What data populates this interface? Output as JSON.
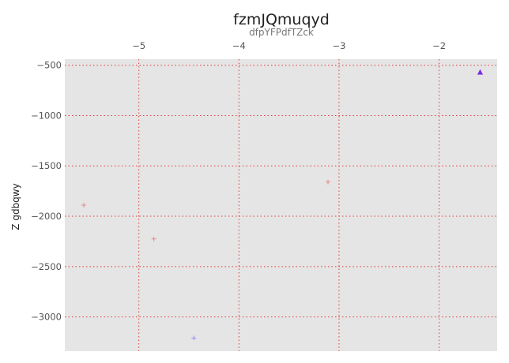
{
  "chart_data": {
    "type": "scatter",
    "title": "fzmJQmuqyd",
    "subtitle": "dfpYFPdfTZck",
    "xlabel": "",
    "ylabel": "Z gdbqwy",
    "x_axis_position": "top",
    "xlim": [
      -5.74,
      -1.42
    ],
    "ylim": [
      -3340,
      -440
    ],
    "xticks": [
      -5,
      -4,
      -3,
      -2
    ],
    "yticks": [
      -500,
      -1000,
      -1500,
      -2000,
      -2500,
      -3000
    ],
    "xtick_labels": [
      "−5",
      "−4",
      "−3",
      "−2"
    ],
    "ytick_labels": [
      "−500",
      "−1000",
      "−1500",
      "−2000",
      "−2500",
      "−3000"
    ],
    "grid": true,
    "grid_style": "dotted",
    "series": [
      {
        "marker": "plus",
        "color": "#e8868e",
        "points": [
          {
            "x": -5.55,
            "y": -1890
          },
          {
            "x": -4.85,
            "y": -2225
          },
          {
            "x": -3.11,
            "y": -1660
          }
        ]
      },
      {
        "marker": "plus",
        "color": "#9b8cf0",
        "points": [
          {
            "x": -4.45,
            "y": -3210
          }
        ]
      },
      {
        "marker": "triangle",
        "color": "#7b2cf0",
        "points": [
          {
            "x": -1.59,
            "y": -570
          }
        ]
      }
    ],
    "colors": {
      "plot_background": "#e5e5e5",
      "grid": "#e23a3a"
    }
  }
}
